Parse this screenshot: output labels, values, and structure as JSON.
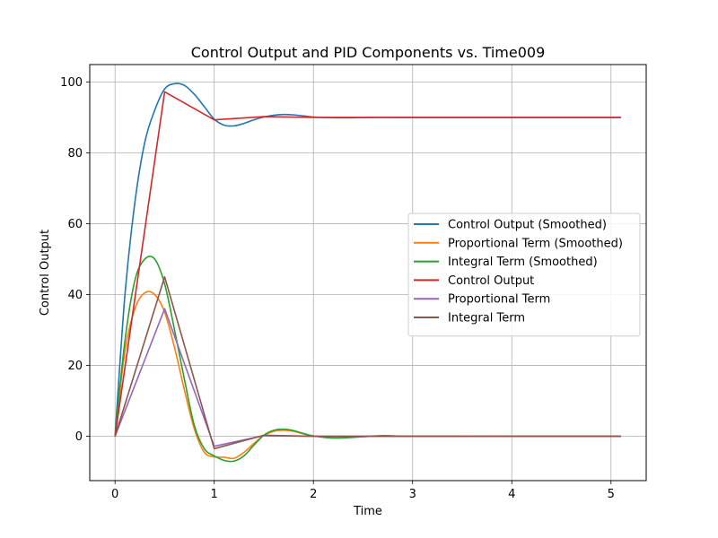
{
  "chart_data": {
    "type": "line",
    "title": "Control Output and PID Components vs. Time009",
    "xlabel": "Time",
    "ylabel": "Control Output",
    "xlim": [
      -0.255,
      5.355
    ],
    "ylim": [
      -12.5,
      104.9
    ],
    "x_ticks": [
      0,
      1,
      2,
      3,
      4,
      5
    ],
    "y_ticks": [
      0,
      20,
      40,
      60,
      80,
      100
    ],
    "grid": true,
    "legend_position": "center-right",
    "series": [
      {
        "name": "Control Output (Smoothed)",
        "color": "#1f77b4",
        "x": [
          0,
          0.1,
          0.2,
          0.3,
          0.4,
          0.5,
          0.6,
          0.7,
          0.8,
          0.9,
          1.0,
          1.1,
          1.2,
          1.3,
          1.4,
          1.5,
          1.6,
          1.7,
          1.8,
          1.9,
          2.0,
          2.2,
          2.4,
          2.6,
          3.0,
          4.0,
          5.1
        ],
        "values": [
          0,
          40,
          66,
          83,
          92,
          98,
          99.5,
          99,
          96.5,
          93,
          89.5,
          87.8,
          87.6,
          88.3,
          89.3,
          90.1,
          90.6,
          90.8,
          90.7,
          90.4,
          90.1,
          89.9,
          89.9,
          90.0,
          90.0,
          90.0,
          90.0
        ]
      },
      {
        "name": "Proportional Term (Smoothed)",
        "color": "#ff7f0e",
        "x": [
          0,
          0.1,
          0.2,
          0.3,
          0.4,
          0.5,
          0.6,
          0.7,
          0.8,
          0.9,
          1.0,
          1.1,
          1.2,
          1.3,
          1.4,
          1.5,
          1.6,
          1.7,
          1.8,
          1.9,
          2.0,
          2.2,
          2.4,
          2.7,
          3.0,
          4.0,
          5.1
        ],
        "values": [
          0,
          24,
          36,
          40.5,
          40,
          35,
          25,
          13,
          2,
          -4.5,
          -5.8,
          -5.9,
          -6.2,
          -4.5,
          -2,
          0.2,
          1.4,
          1.7,
          1.4,
          0.7,
          0.1,
          -0.3,
          -0.2,
          0.1,
          0,
          0,
          0
        ]
      },
      {
        "name": "Integral Term (Smoothed)",
        "color": "#2ca02c",
        "x": [
          0,
          0.1,
          0.2,
          0.3,
          0.4,
          0.5,
          0.6,
          0.7,
          0.8,
          0.9,
          1.0,
          1.1,
          1.2,
          1.3,
          1.4,
          1.5,
          1.6,
          1.7,
          1.8,
          1.9,
          2.0,
          2.2,
          2.4,
          2.7,
          3.0,
          4.0,
          5.1
        ],
        "values": [
          0,
          27,
          44,
          50,
          50,
          43,
          30,
          16,
          3,
          -3.5,
          -5.5,
          -6.8,
          -7,
          -5.5,
          -2.5,
          0.3,
          1.7,
          2.0,
          1.6,
          0.8,
          0.1,
          -0.5,
          -0.3,
          0.2,
          0,
          0,
          0
        ]
      },
      {
        "name": "Control Output",
        "color": "#d62728",
        "x": [
          0,
          0.5,
          1.0,
          1.5,
          2.0,
          2.5,
          3.0,
          3.5,
          4.0,
          4.5,
          5.0,
          5.1
        ],
        "values": [
          0,
          97.2,
          89.3,
          90.2,
          90.0,
          90.0,
          90.0,
          90.0,
          90.0,
          90.0,
          90.0,
          90.0
        ]
      },
      {
        "name": "Proportional Term",
        "color": "#9467bd",
        "x": [
          0,
          0.5,
          1.0,
          1.5,
          2.0,
          2.5,
          3.0,
          3.5,
          4.0,
          4.5,
          5.0,
          5.1
        ],
        "values": [
          0,
          36,
          -2.8,
          0.2,
          0,
          0,
          0,
          0,
          0,
          0,
          0,
          0
        ]
      },
      {
        "name": "Integral Term",
        "color": "#8c564b",
        "x": [
          0,
          0.5,
          1.0,
          1.5,
          2.0,
          2.5,
          3.0,
          3.5,
          4.0,
          4.5,
          5.0,
          5.1
        ],
        "values": [
          0,
          45,
          -3.5,
          0.3,
          0,
          0,
          0,
          0,
          0,
          0,
          0,
          0
        ]
      }
    ]
  }
}
